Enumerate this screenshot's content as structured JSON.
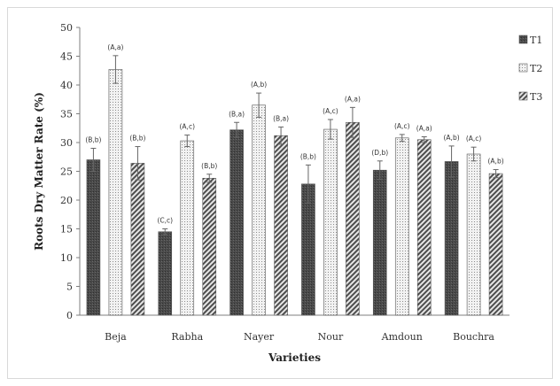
{
  "chart_data": {
    "type": "bar",
    "title": "",
    "xlabel": "Varieties",
    "ylabel": "Roots Dry Matter Rate (%)",
    "ylim": [
      0,
      50
    ],
    "yticks": [
      0,
      5,
      10,
      15,
      20,
      25,
      30,
      35,
      40,
      45,
      50
    ],
    "grid": false,
    "legend_position": "right",
    "categories": [
      "Beja",
      "Rabha",
      "Nayer",
      "Nour",
      "Amdoun",
      "Bouchra"
    ],
    "series": [
      {
        "name": "T1",
        "pattern": "dark",
        "values": [
          27.0,
          14.5,
          32.2,
          22.8,
          25.2,
          26.7
        ],
        "errors": [
          2.0,
          0.5,
          1.3,
          3.3,
          1.6,
          2.7
        ],
        "labels": [
          "(B,b)",
          "(C,c)",
          "(B,a)",
          "(B,b)",
          "(D,b)",
          "(A,b)"
        ]
      },
      {
        "name": "T2",
        "pattern": "dotted",
        "values": [
          42.7,
          30.3,
          36.5,
          32.3,
          30.8,
          28.0
        ],
        "errors": [
          2.4,
          1.0,
          2.1,
          1.7,
          0.6,
          1.2
        ],
        "labels": [
          "(A,a)",
          "(A,c)",
          "(A,b)",
          "(A,c)",
          "(A,c)",
          "(A,c)"
        ]
      },
      {
        "name": "T3",
        "pattern": "hatched",
        "values": [
          26.4,
          23.8,
          31.2,
          33.5,
          30.5,
          24.6
        ],
        "errors": [
          2.9,
          0.7,
          1.5,
          2.6,
          0.5,
          0.7
        ],
        "labels": [
          "(B,b)",
          "(B,b)",
          "(B,a)",
          "(A,a)",
          "(A,a)",
          "(A,b)"
        ]
      }
    ]
  }
}
